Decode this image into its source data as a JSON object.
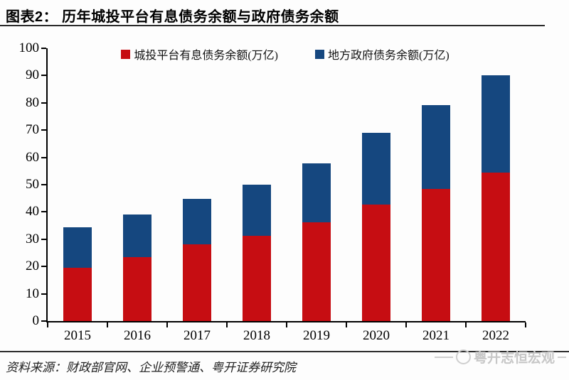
{
  "header": {
    "title": "图表2： 历年城投平台有息债务余额与政府债务余额"
  },
  "chart_data": {
    "type": "bar",
    "stacked": true,
    "title": "历年城投平台有息债务余额与政府债务余额",
    "categories": [
      "2015",
      "2016",
      "2017",
      "2018",
      "2019",
      "2020",
      "2021",
      "2022"
    ],
    "series": [
      {
        "name": "城投平台有息债务余额(万亿)",
        "color": "#c60d12",
        "values": [
          19.5,
          23.5,
          28.0,
          31.3,
          36.2,
          42.8,
          48.5,
          54.5
        ]
      },
      {
        "name": "地方政府债务余额(万亿)",
        "color": "#15477f",
        "values": [
          15.0,
          15.5,
          16.8,
          18.7,
          21.6,
          26.2,
          30.8,
          35.5
        ]
      }
    ],
    "stack_totals": [
      34.5,
      39.0,
      44.8,
      50.0,
      57.8,
      69.0,
      79.3,
      90.0
    ],
    "xlabel": "",
    "ylabel": "",
    "ylim": [
      0,
      100
    ],
    "ytick_step": 10,
    "grid": false,
    "legend_position": "top"
  },
  "footer": {
    "source": "资料来源：财政部官网、企业预警通、粤开证券研究院",
    "watermark": "粤开志恒宏观"
  }
}
